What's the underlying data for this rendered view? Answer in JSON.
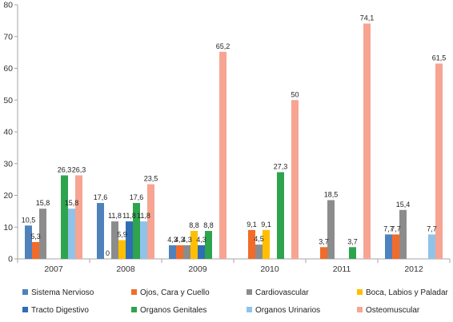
{
  "chart_data": {
    "type": "bar",
    "categories": [
      "2007",
      "2008",
      "2009",
      "2010",
      "2011",
      "2012"
    ],
    "ylim": [
      0,
      80
    ],
    "yticks": [
      0,
      10,
      20,
      30,
      40,
      50,
      60,
      70,
      80
    ],
    "grid": false,
    "legend_position": "bottom",
    "series": [
      {
        "name": "Sistema Nervioso",
        "color": "#4f81bd",
        "values": [
          10.5,
          17.6,
          4.3,
          null,
          null,
          7.7
        ],
        "labels": [
          "10,5",
          "17,6",
          "4,3",
          "",
          "",
          "7,7"
        ]
      },
      {
        "name": "Ojos, Cara y Cuello",
        "color": "#f26b2a",
        "values": [
          5.3,
          0,
          4.3,
          9.1,
          3.7,
          7.7
        ],
        "labels": [
          "5,3",
          "0",
          "4,3",
          "9,1",
          "3,7",
          "7,7"
        ]
      },
      {
        "name": "Cardiovascular",
        "color": "#8c8c8c",
        "values": [
          15.8,
          11.8,
          4.3,
          4.5,
          18.5,
          15.4
        ],
        "labels": [
          "15,8",
          "11,8",
          "4,3",
          "4,5",
          "18,5",
          "15,4"
        ]
      },
      {
        "name": "Boca, Labios y Paladar",
        "color": "#ffbf00",
        "values": [
          null,
          5.9,
          8.8,
          9.1,
          null,
          null
        ],
        "labels": [
          "",
          "5,9",
          "8,8",
          "9,1",
          "",
          ""
        ]
      },
      {
        "name": "Tracto Digestivo",
        "color": "#2f6db5",
        "values": [
          null,
          11.8,
          4.3,
          null,
          null,
          null
        ],
        "labels": [
          "",
          "11,8",
          "4,3",
          "",
          "",
          ""
        ]
      },
      {
        "name": "Organos Genitales",
        "color": "#2ea44f",
        "values": [
          26.3,
          17.6,
          8.8,
          27.3,
          3.7,
          null
        ],
        "labels": [
          "26,3",
          "17,6",
          "8,8",
          "27,3",
          "3,7",
          ""
        ]
      },
      {
        "name": "Organos Urinarios",
        "color": "#8fc3ea",
        "values": [
          15.8,
          11.8,
          null,
          null,
          null,
          7.7
        ],
        "labels": [
          "15,8",
          "11,8",
          "",
          "",
          "",
          "7,7"
        ]
      },
      {
        "name": "Osteomuscular",
        "color": "#f7a493",
        "values": [
          26.3,
          23.5,
          65.2,
          50,
          74.1,
          61.5
        ],
        "labels": [
          "26,3",
          "23,5",
          "65,2",
          "50",
          "74,1",
          "61,5"
        ]
      }
    ]
  }
}
